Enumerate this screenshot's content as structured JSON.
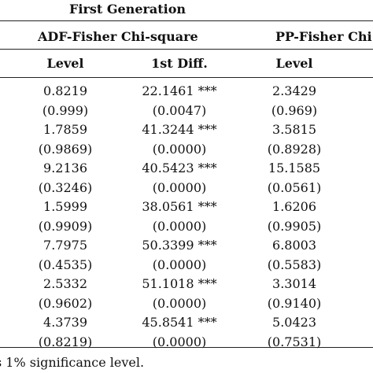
{
  "header": {
    "generation": "First Generation",
    "group1": "ADF-Fisher Chi-square",
    "group2": "PP-Fisher Chi",
    "col_level_1": "Level",
    "col_diff_1": "1st Diff.",
    "col_level_2": "Level"
  },
  "rows": [
    {
      "adf_level": "0.8219",
      "adf_diff": "22.1461 ***",
      "pp_level": "2.3429"
    },
    {
      "adf_level": "(0.999)",
      "adf_diff": "(0.0047)",
      "pp_level": "(0.969)"
    },
    {
      "adf_level": "1.7859",
      "adf_diff": "41.3244 ***",
      "pp_level": "3.5815"
    },
    {
      "adf_level": "(0.9869)",
      "adf_diff": "(0.0000)",
      "pp_level": "(0.8928)"
    },
    {
      "adf_level": "9.2136",
      "adf_diff": "40.5423 ***",
      "pp_level": "15.1585"
    },
    {
      "adf_level": "(0.3246)",
      "adf_diff": "(0.0000)",
      "pp_level": "(0.0561)"
    },
    {
      "adf_level": "1.5999",
      "adf_diff": "38.0561 ***",
      "pp_level": "1.6206"
    },
    {
      "adf_level": "(0.9909)",
      "adf_diff": "(0.0000)",
      "pp_level": "(0.9905)"
    },
    {
      "adf_level": "7.7975",
      "adf_diff": "50.3399 ***",
      "pp_level": "6.8003"
    },
    {
      "adf_level": "(0.4535)",
      "adf_diff": "(0.0000)",
      "pp_level": "(0.5583)"
    },
    {
      "adf_level": "2.5332",
      "adf_diff": "51.1018 ***",
      "pp_level": "3.3014"
    },
    {
      "adf_level": "(0.9602)",
      "adf_diff": "(0.0000)",
      "pp_level": "(0.9140)"
    },
    {
      "adf_level": "4.3739",
      "adf_diff": "45.8541 ***",
      "pp_level": "5.0423"
    },
    {
      "adf_level": "(0.8219)",
      "adf_diff": "(0.0000)",
      "pp_level": "(0.7531)"
    }
  ],
  "footnote": "s 1% significance level."
}
